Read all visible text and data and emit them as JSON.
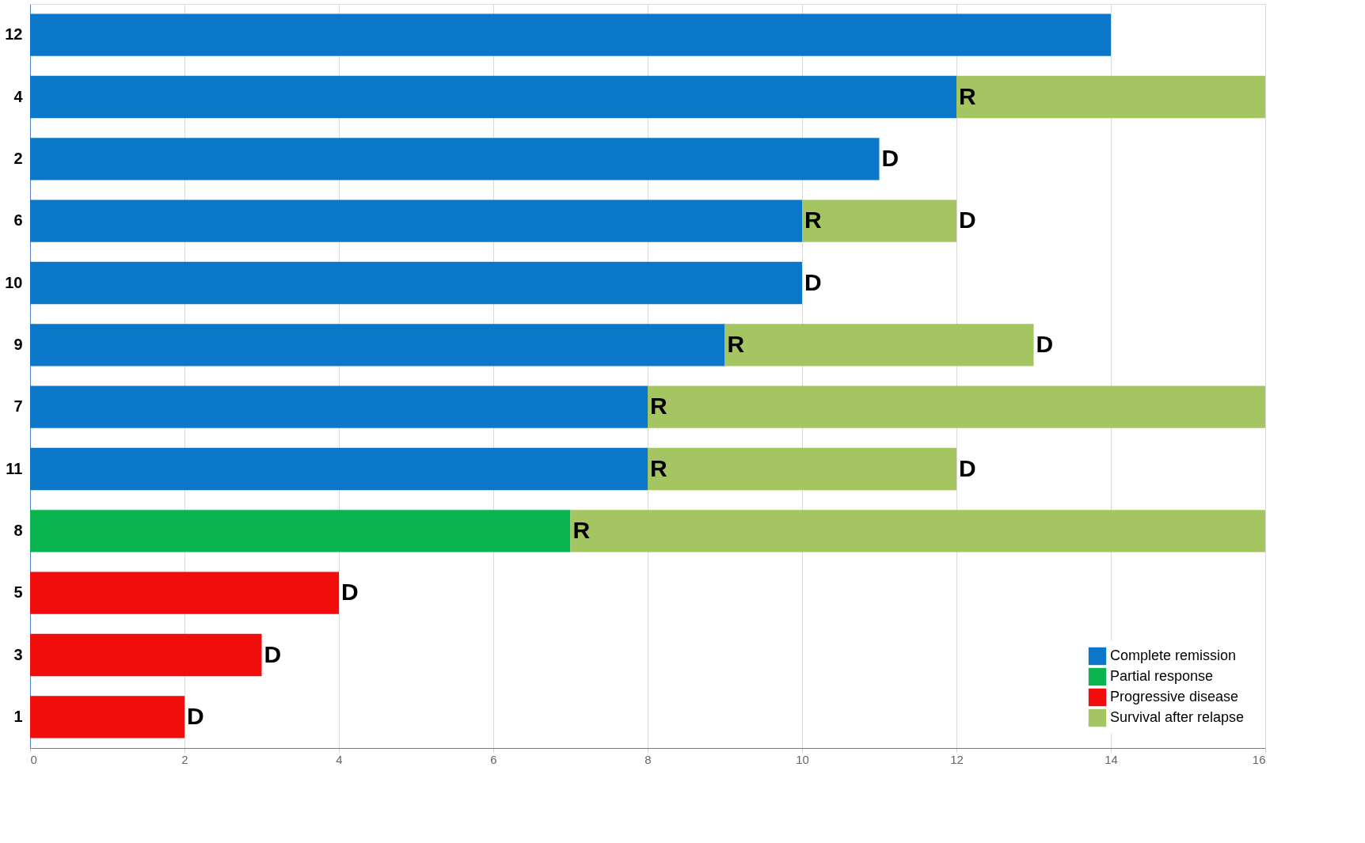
{
  "chart_data": {
    "type": "bar",
    "orientation": "horizontal",
    "stacked": true,
    "categories": [
      "12",
      "4",
      "2",
      "6",
      "10",
      "9",
      "7",
      "11",
      "8",
      "5",
      "3",
      "1"
    ],
    "series": [
      {
        "name": "Complete remission",
        "color": "#0b77c9",
        "values": [
          14,
          12,
          11,
          10,
          10,
          9,
          8,
          8,
          null,
          null,
          null,
          null
        ]
      },
      {
        "name": "Partial response",
        "color": "#0ab550",
        "values": [
          null,
          null,
          null,
          null,
          null,
          null,
          null,
          null,
          7,
          null,
          null,
          null
        ]
      },
      {
        "name": "Progressive disease",
        "color": "#f20d0d",
        "values": [
          null,
          null,
          null,
          null,
          null,
          null,
          null,
          null,
          null,
          4,
          3,
          2
        ]
      },
      {
        "name": "Survival after relapse",
        "color": "#a5c462",
        "values": [
          null,
          4,
          null,
          2,
          null,
          4,
          8,
          4,
          9,
          null,
          null,
          null
        ]
      }
    ],
    "xlim": [
      0,
      16
    ],
    "xticks": [
      0,
      2,
      4,
      6,
      8,
      10,
      12,
      14,
      16
    ],
    "grid": "x",
    "legend": "bottom right",
    "annotations": [
      {
        "text": "R",
        "x": 12,
        "y": "4"
      },
      {
        "text": "D",
        "x": 11,
        "y": "2"
      },
      {
        "text": "R",
        "x": 10,
        "y": "6"
      },
      {
        "text": "D",
        "x": 12,
        "y": "6"
      },
      {
        "text": "D",
        "x": 10,
        "y": "10"
      },
      {
        "text": "R",
        "x": 9,
        "y": "9"
      },
      {
        "text": "D",
        "x": 13,
        "y": "9"
      },
      {
        "text": "R",
        "x": 8,
        "y": "7"
      },
      {
        "text": "R",
        "x": 8,
        "y": "11"
      },
      {
        "text": "D",
        "x": 12,
        "y": "11"
      },
      {
        "text": "R",
        "x": 7,
        "y": "8"
      },
      {
        "text": "D",
        "x": 4,
        "y": "5"
      },
      {
        "text": "D",
        "x": 3,
        "y": "3"
      },
      {
        "text": "D",
        "x": 2,
        "y": "1"
      }
    ]
  }
}
